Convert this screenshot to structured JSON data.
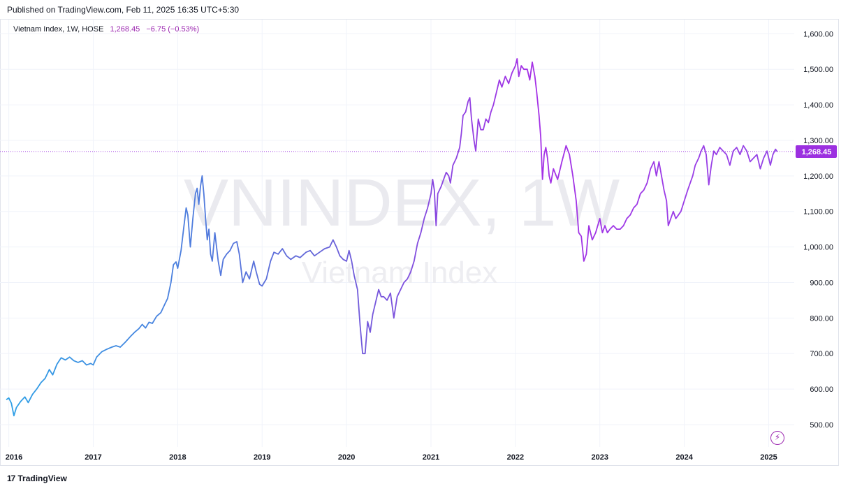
{
  "header": {
    "published": "Published on TradingView.com, Feb 11, 2025 16:35 UTC+5:30"
  },
  "legend": {
    "name": "Vietnam Index, 1W, HOSE",
    "last": "1,268.45",
    "change": "−6.75 (−0.53%)"
  },
  "watermark": {
    "symbol": "VNINDEX, 1W",
    "description": "Vietnam Index"
  },
  "price_label": "1,268.45",
  "footer": {
    "brand": "TradingView"
  },
  "colors": {
    "start": "#2ea0e6",
    "mid": "#6466d8",
    "end": "#a531e6",
    "label_bg": "#9c30e0"
  },
  "chart_data": {
    "type": "line",
    "title": "",
    "xlabel": "",
    "ylabel": "",
    "x_ticks": [
      "2016",
      "2017",
      "2018",
      "2019",
      "2020",
      "2021",
      "2022",
      "2023",
      "2024",
      "2025"
    ],
    "y_ticks": [
      "500.00",
      "600.00",
      "700.00",
      "800.00",
      "900.00",
      "1,000.00",
      "1,100.00",
      "1,200.00",
      "1,300.00",
      "1,400.00",
      "1,500.00",
      "1,600.00"
    ],
    "ylim": [
      437,
      1640
    ],
    "xlim": [
      2015.97,
      2025.12
    ],
    "last_value": 1268.45,
    "series": [
      {
        "points": [
          [
            2015.97,
            570
          ],
          [
            2016.0,
            575
          ],
          [
            2016.03,
            560
          ],
          [
            2016.06,
            525
          ],
          [
            2016.09,
            548
          ],
          [
            2016.14,
            565
          ],
          [
            2016.19,
            578
          ],
          [
            2016.23,
            562
          ],
          [
            2016.28,
            585
          ],
          [
            2016.33,
            600
          ],
          [
            2016.38,
            618
          ],
          [
            2016.43,
            630
          ],
          [
            2016.48,
            655
          ],
          [
            2016.52,
            640
          ],
          [
            2016.57,
            670
          ],
          [
            2016.62,
            688
          ],
          [
            2016.67,
            682
          ],
          [
            2016.72,
            690
          ],
          [
            2016.77,
            680
          ],
          [
            2016.82,
            675
          ],
          [
            2016.87,
            680
          ],
          [
            2016.92,
            668
          ],
          [
            2016.97,
            672
          ],
          [
            2017.0,
            668
          ],
          [
            2017.04,
            690
          ],
          [
            2017.1,
            705
          ],
          [
            2017.16,
            712
          ],
          [
            2017.22,
            718
          ],
          [
            2017.27,
            722
          ],
          [
            2017.32,
            718
          ],
          [
            2017.38,
            732
          ],
          [
            2017.44,
            748
          ],
          [
            2017.49,
            760
          ],
          [
            2017.54,
            770
          ],
          [
            2017.58,
            782
          ],
          [
            2017.62,
            772
          ],
          [
            2017.66,
            788
          ],
          [
            2017.7,
            785
          ],
          [
            2017.75,
            805
          ],
          [
            2017.8,
            815
          ],
          [
            2017.85,
            840
          ],
          [
            2017.88,
            855
          ],
          [
            2017.92,
            900
          ],
          [
            2017.95,
            950
          ],
          [
            2017.98,
            958
          ],
          [
            2018.0,
            940
          ],
          [
            2018.04,
            990
          ],
          [
            2018.07,
            1050
          ],
          [
            2018.1,
            1110
          ],
          [
            2018.12,
            1090
          ],
          [
            2018.15,
            1000
          ],
          [
            2018.18,
            1080
          ],
          [
            2018.21,
            1150
          ],
          [
            2018.23,
            1165
          ],
          [
            2018.25,
            1120
          ],
          [
            2018.27,
            1170
          ],
          [
            2018.29,
            1200
          ],
          [
            2018.31,
            1150
          ],
          [
            2018.33,
            1080
          ],
          [
            2018.35,
            1020
          ],
          [
            2018.37,
            1050
          ],
          [
            2018.39,
            980
          ],
          [
            2018.41,
            960
          ],
          [
            2018.44,
            1040
          ],
          [
            2018.48,
            960
          ],
          [
            2018.51,
            920
          ],
          [
            2018.54,
            965
          ],
          [
            2018.58,
            980
          ],
          [
            2018.62,
            990
          ],
          [
            2018.66,
            1010
          ],
          [
            2018.7,
            1015
          ],
          [
            2018.73,
            980
          ],
          [
            2018.77,
            900
          ],
          [
            2018.81,
            930
          ],
          [
            2018.85,
            910
          ],
          [
            2018.9,
            960
          ],
          [
            2018.93,
            930
          ],
          [
            2018.97,
            895
          ],
          [
            2019.0,
            890
          ],
          [
            2019.05,
            910
          ],
          [
            2019.1,
            960
          ],
          [
            2019.14,
            985
          ],
          [
            2019.19,
            980
          ],
          [
            2019.24,
            995
          ],
          [
            2019.29,
            975
          ],
          [
            2019.34,
            965
          ],
          [
            2019.4,
            975
          ],
          [
            2019.45,
            970
          ],
          [
            2019.52,
            985
          ],
          [
            2019.57,
            990
          ],
          [
            2019.62,
            975
          ],
          [
            2019.68,
            985
          ],
          [
            2019.74,
            995
          ],
          [
            2019.8,
            1000
          ],
          [
            2019.84,
            1020
          ],
          [
            2019.88,
            1000
          ],
          [
            2019.92,
            975
          ],
          [
            2019.96,
            965
          ],
          [
            2020.0,
            960
          ],
          [
            2020.03,
            990
          ],
          [
            2020.06,
            960
          ],
          [
            2020.09,
            920
          ],
          [
            2020.13,
            880
          ],
          [
            2020.16,
            780
          ],
          [
            2020.19,
            700
          ],
          [
            2020.22,
            700
          ],
          [
            2020.25,
            790
          ],
          [
            2020.28,
            760
          ],
          [
            2020.31,
            810
          ],
          [
            2020.35,
            850
          ],
          [
            2020.38,
            880
          ],
          [
            2020.41,
            860
          ],
          [
            2020.44,
            860
          ],
          [
            2020.48,
            850
          ],
          [
            2020.52,
            870
          ],
          [
            2020.56,
            800
          ],
          [
            2020.6,
            860
          ],
          [
            2020.64,
            880
          ],
          [
            2020.68,
            900
          ],
          [
            2020.72,
            910
          ],
          [
            2020.76,
            930
          ],
          [
            2020.8,
            960
          ],
          [
            2020.84,
            1010
          ],
          [
            2020.88,
            1040
          ],
          [
            2020.92,
            1080
          ],
          [
            2020.96,
            1110
          ],
          [
            2021.0,
            1150
          ],
          [
            2021.02,
            1190
          ],
          [
            2021.04,
            1160
          ],
          [
            2021.06,
            1060
          ],
          [
            2021.08,
            1150
          ],
          [
            2021.12,
            1170
          ],
          [
            2021.15,
            1190
          ],
          [
            2021.18,
            1210
          ],
          [
            2021.21,
            1200
          ],
          [
            2021.23,
            1180
          ],
          [
            2021.26,
            1230
          ],
          [
            2021.3,
            1250
          ],
          [
            2021.34,
            1280
          ],
          [
            2021.36,
            1320
          ],
          [
            2021.38,
            1370
          ],
          [
            2021.41,
            1380
          ],
          [
            2021.44,
            1410
          ],
          [
            2021.46,
            1420
          ],
          [
            2021.48,
            1360
          ],
          [
            2021.51,
            1300
          ],
          [
            2021.53,
            1270
          ],
          [
            2021.56,
            1360
          ],
          [
            2021.59,
            1330
          ],
          [
            2021.62,
            1330
          ],
          [
            2021.65,
            1360
          ],
          [
            2021.68,
            1350
          ],
          [
            2021.71,
            1380
          ],
          [
            2021.74,
            1400
          ],
          [
            2021.78,
            1440
          ],
          [
            2021.81,
            1470
          ],
          [
            2021.84,
            1450
          ],
          [
            2021.88,
            1480
          ],
          [
            2021.92,
            1460
          ],
          [
            2021.96,
            1490
          ],
          [
            2022.0,
            1510
          ],
          [
            2022.02,
            1530
          ],
          [
            2022.04,
            1480
          ],
          [
            2022.07,
            1510
          ],
          [
            2022.1,
            1500
          ],
          [
            2022.14,
            1500
          ],
          [
            2022.17,
            1470
          ],
          [
            2022.2,
            1520
          ],
          [
            2022.23,
            1480
          ],
          [
            2022.25,
            1440
          ],
          [
            2022.28,
            1370
          ],
          [
            2022.3,
            1310
          ],
          [
            2022.32,
            1190
          ],
          [
            2022.34,
            1260
          ],
          [
            2022.36,
            1280
          ],
          [
            2022.38,
            1250
          ],
          [
            2022.4,
            1200
          ],
          [
            2022.42,
            1180
          ],
          [
            2022.45,
            1220
          ],
          [
            2022.5,
            1190
          ],
          [
            2022.55,
            1240
          ],
          [
            2022.6,
            1285
          ],
          [
            2022.64,
            1260
          ],
          [
            2022.68,
            1200
          ],
          [
            2022.72,
            1130
          ],
          [
            2022.75,
            1040
          ],
          [
            2022.78,
            1030
          ],
          [
            2022.81,
            960
          ],
          [
            2022.84,
            980
          ],
          [
            2022.87,
            1060
          ],
          [
            2022.91,
            1020
          ],
          [
            2022.95,
            1040
          ],
          [
            2023.0,
            1080
          ],
          [
            2023.03,
            1040
          ],
          [
            2023.06,
            1060
          ],
          [
            2023.09,
            1040
          ],
          [
            2023.12,
            1050
          ],
          [
            2023.16,
            1060
          ],
          [
            2023.2,
            1050
          ],
          [
            2023.24,
            1050
          ],
          [
            2023.28,
            1060
          ],
          [
            2023.32,
            1080
          ],
          [
            2023.36,
            1090
          ],
          [
            2023.4,
            1110
          ],
          [
            2023.44,
            1120
          ],
          [
            2023.48,
            1150
          ],
          [
            2023.52,
            1160
          ],
          [
            2023.56,
            1180
          ],
          [
            2023.6,
            1220
          ],
          [
            2023.64,
            1240
          ],
          [
            2023.67,
            1200
          ],
          [
            2023.7,
            1240
          ],
          [
            2023.73,
            1200
          ],
          [
            2023.76,
            1160
          ],
          [
            2023.79,
            1130
          ],
          [
            2023.81,
            1060
          ],
          [
            2023.84,
            1080
          ],
          [
            2023.87,
            1100
          ],
          [
            2023.9,
            1080
          ],
          [
            2023.93,
            1090
          ],
          [
            2023.96,
            1100
          ],
          [
            2024.0,
            1130
          ],
          [
            2024.04,
            1160
          ],
          [
            2024.07,
            1180
          ],
          [
            2024.1,
            1200
          ],
          [
            2024.13,
            1230
          ],
          [
            2024.17,
            1250
          ],
          [
            2024.2,
            1270
          ],
          [
            2024.23,
            1285
          ],
          [
            2024.26,
            1260
          ],
          [
            2024.29,
            1175
          ],
          [
            2024.32,
            1230
          ],
          [
            2024.35,
            1270
          ],
          [
            2024.38,
            1260
          ],
          [
            2024.42,
            1280
          ],
          [
            2024.46,
            1270
          ],
          [
            2024.5,
            1260
          ],
          [
            2024.54,
            1230
          ],
          [
            2024.58,
            1270
          ],
          [
            2024.62,
            1280
          ],
          [
            2024.66,
            1260
          ],
          [
            2024.7,
            1285
          ],
          [
            2024.74,
            1270
          ],
          [
            2024.78,
            1240
          ],
          [
            2024.82,
            1250
          ],
          [
            2024.86,
            1260
          ],
          [
            2024.9,
            1220
          ],
          [
            2024.94,
            1250
          ],
          [
            2024.98,
            1270
          ],
          [
            2025.02,
            1230
          ],
          [
            2025.05,
            1260
          ],
          [
            2025.08,
            1275
          ],
          [
            2025.1,
            1268.45
          ]
        ]
      }
    ]
  }
}
